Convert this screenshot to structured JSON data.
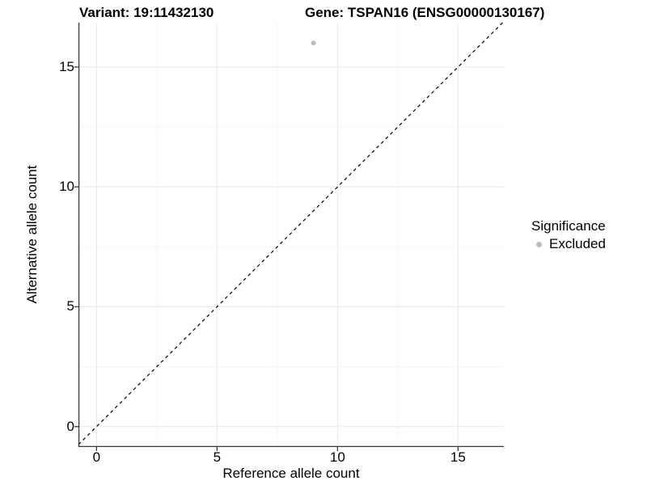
{
  "chart_data": {
    "type": "scatter",
    "title_left": "Variant: 19:11432130",
    "title_right": "Gene: TSPAN16 (ENSG00000130167)",
    "xlabel": "Reference allele count",
    "ylabel": "Alternative allele count",
    "xlim": [
      -0.75,
      16.9
    ],
    "ylim": [
      -0.85,
      16.85
    ],
    "x_ticks": [
      0,
      5,
      10,
      15
    ],
    "y_ticks": [
      0,
      5,
      10,
      15
    ],
    "x_minor_ticks": [
      2.5,
      7.5,
      12.5
    ],
    "y_minor_ticks": [
      2.5,
      7.5,
      12.5
    ],
    "grid": "on",
    "identity_line": {
      "equation": "y = x",
      "style": "dashed",
      "color": "#000000"
    },
    "series": [
      {
        "name": "Excluded",
        "color": "#bdbdbd",
        "points": [
          {
            "x": 9,
            "y": 16
          }
        ]
      }
    ],
    "legend": {
      "title": "Significance",
      "position": "right",
      "items": [
        {
          "label": "Excluded",
          "color": "#bdbdbd"
        }
      ]
    }
  }
}
